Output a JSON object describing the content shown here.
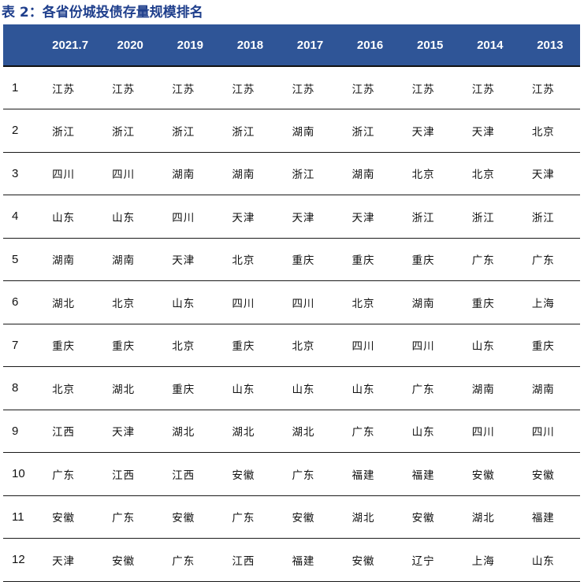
{
  "caption": "表 2：各省份城投债存量规模排名",
  "table": {
    "columns": [
      "",
      "2021.7",
      "2020",
      "2019",
      "2018",
      "2017",
      "2016",
      "2015",
      "2014",
      "2013"
    ],
    "rows": [
      {
        "rank": "1",
        "cells": [
          "江苏",
          "江苏",
          "江苏",
          "江苏",
          "江苏",
          "江苏",
          "江苏",
          "江苏",
          "江苏"
        ]
      },
      {
        "rank": "2",
        "cells": [
          "浙江",
          "浙江",
          "浙江",
          "浙江",
          "湖南",
          "浙江",
          "天津",
          "天津",
          "北京"
        ]
      },
      {
        "rank": "3",
        "cells": [
          "四川",
          "四川",
          "湖南",
          "湖南",
          "浙江",
          "湖南",
          "北京",
          "北京",
          "天津"
        ]
      },
      {
        "rank": "4",
        "cells": [
          "山东",
          "山东",
          "四川",
          "天津",
          "天津",
          "天津",
          "浙江",
          "浙江",
          "浙江"
        ]
      },
      {
        "rank": "5",
        "cells": [
          "湖南",
          "湖南",
          "天津",
          "北京",
          "重庆",
          "重庆",
          "重庆",
          "广东",
          "广东"
        ]
      },
      {
        "rank": "6",
        "cells": [
          "湖北",
          "北京",
          "山东",
          "四川",
          "四川",
          "北京",
          "湖南",
          "重庆",
          "上海"
        ]
      },
      {
        "rank": "7",
        "cells": [
          "重庆",
          "重庆",
          "北京",
          "重庆",
          "北京",
          "四川",
          "四川",
          "山东",
          "重庆"
        ]
      },
      {
        "rank": "8",
        "cells": [
          "北京",
          "湖北",
          "重庆",
          "山东",
          "山东",
          "山东",
          "广东",
          "湖南",
          "湖南"
        ]
      },
      {
        "rank": "9",
        "cells": [
          "江西",
          "天津",
          "湖北",
          "湖北",
          "湖北",
          "广东",
          "山东",
          "四川",
          "四川"
        ]
      },
      {
        "rank": "10",
        "cells": [
          "广东",
          "江西",
          "江西",
          "安徽",
          "广东",
          "福建",
          "福建",
          "安徽",
          "安徽"
        ]
      },
      {
        "rank": "11",
        "cells": [
          "安徽",
          "广东",
          "安徽",
          "广东",
          "安徽",
          "湖北",
          "安徽",
          "湖北",
          "福建"
        ]
      },
      {
        "rank": "12",
        "cells": [
          "天津",
          "安徽",
          "广东",
          "江西",
          "福建",
          "安徽",
          "辽宁",
          "上海",
          "山东"
        ]
      }
    ]
  }
}
